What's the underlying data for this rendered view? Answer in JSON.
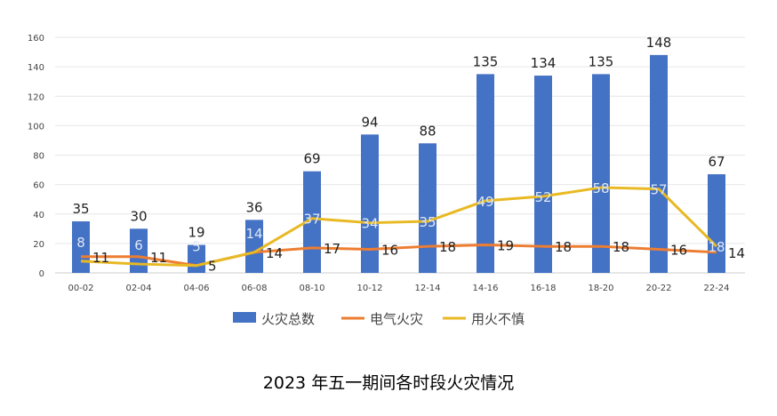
{
  "chart_data": {
    "type": "bar",
    "title": "2023 年五一期间各时段火灾情况",
    "categories": [
      "00-02",
      "02-04",
      "04-06",
      "06-08",
      "08-10",
      "10-12",
      "12-14",
      "14-16",
      "16-18",
      "18-20",
      "20-22",
      "22-24"
    ],
    "series": [
      {
        "name": "火灾总数",
        "type": "bar",
        "color": "#4472C4",
        "values": [
          35,
          30,
          19,
          36,
          69,
          94,
          88,
          135,
          134,
          135,
          148,
          67
        ]
      },
      {
        "name": "电气火灾",
        "type": "line",
        "color": "#ED7D31",
        "values": [
          11,
          11,
          5,
          14,
          17,
          16,
          18,
          19,
          18,
          18,
          16,
          14
        ]
      },
      {
        "name": "用火不慎",
        "type": "line",
        "color": "#E8B923",
        "values": [
          8,
          6,
          5,
          14,
          37,
          34,
          35,
          49,
          52,
          58,
          57,
          18
        ]
      }
    ],
    "ylim": [
      0,
      160
    ],
    "yticks": [
      0,
      20,
      40,
      60,
      80,
      100,
      120,
      140,
      160
    ],
    "grid": true,
    "legend": "bottom",
    "xlabel": "",
    "ylabel": ""
  }
}
